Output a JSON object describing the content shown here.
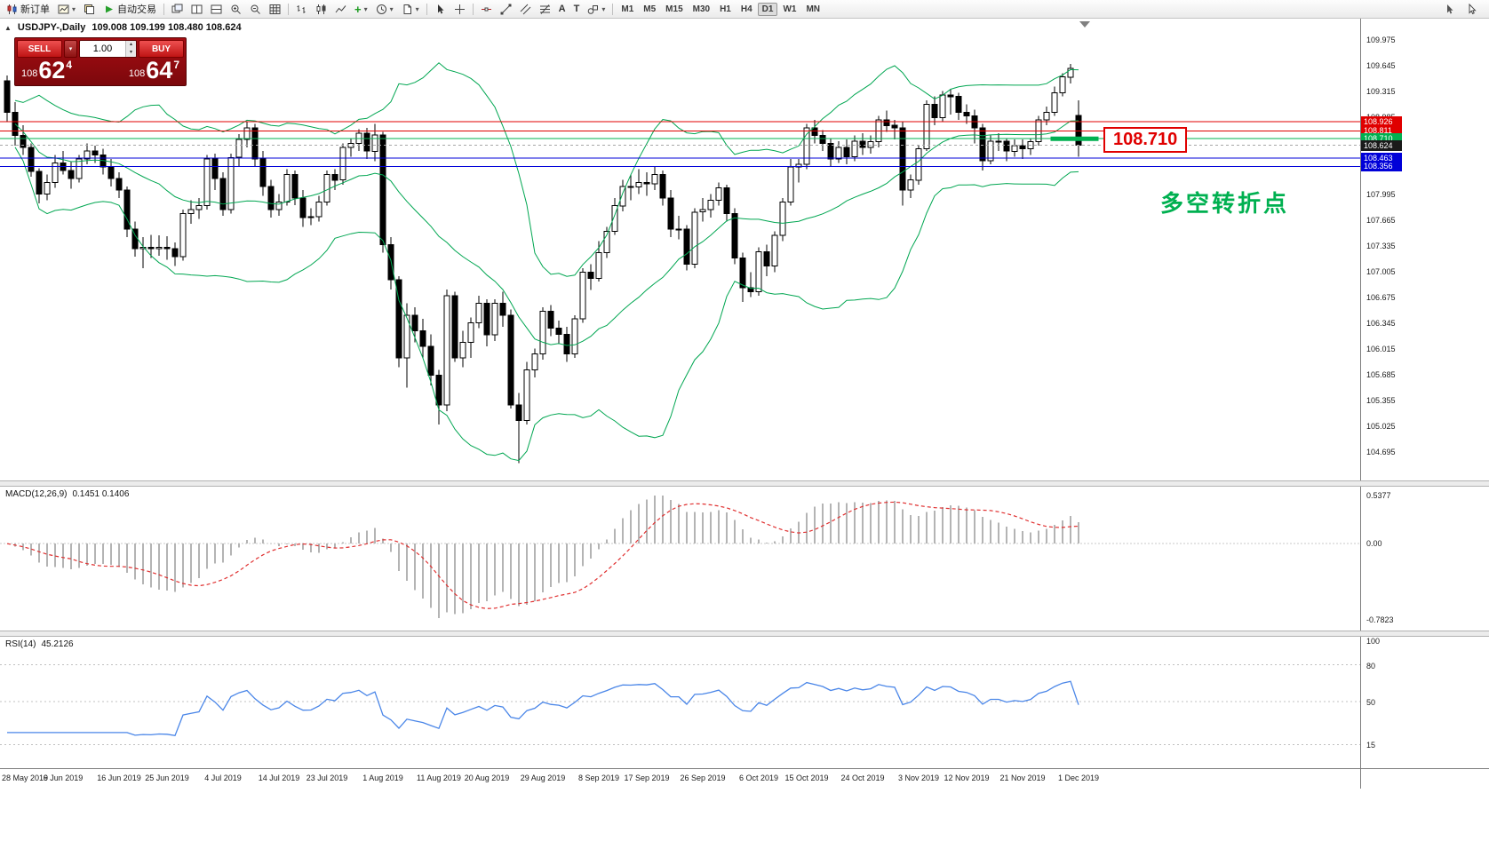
{
  "toolbar": {
    "new_order": "新订单",
    "autotrading": "自动交易",
    "timeframes": [
      "M1",
      "M5",
      "M15",
      "M30",
      "H1",
      "H4",
      "D1",
      "W1",
      "MN"
    ],
    "active_timeframe": "D1"
  },
  "one_click": {
    "sell_label": "SELL",
    "buy_label": "BUY",
    "volume": "1.00",
    "sell_price": {
      "pips": "108",
      "big": "62",
      "frac": "4"
    },
    "buy_price": {
      "pips": "108",
      "big": "64",
      "frac": "7"
    }
  },
  "chart": {
    "title": "USDJPY-,Daily",
    "ohlc_display": "109.008 109.199 108.480 108.624",
    "annotation": "多空转折点",
    "price_label": "108.710",
    "colors": {
      "price_label": "#e00000",
      "annotation": "#00b050"
    },
    "price_ticks": [
      "109.975",
      "109.645",
      "109.315",
      "108.985",
      "108.655",
      "108.325",
      "107.995",
      "107.665",
      "107.335",
      "107.005",
      "106.675",
      "106.345",
      "106.015",
      "105.685",
      "105.355",
      "105.025",
      "104.695"
    ],
    "levels": [
      {
        "price": 108.926,
        "tag": "108.926",
        "line_color": "#e00000",
        "tag_color": "#e00000",
        "dash": false
      },
      {
        "price": 108.811,
        "tag": "108.811",
        "line_color": "#e00000",
        "tag_color": "#e00000",
        "dash": false
      },
      {
        "price": 108.71,
        "tag": "108.710",
        "line_color": "#00b050",
        "tag_color": "#00b050",
        "dash": false
      },
      {
        "price": 108.624,
        "tag": "108.624",
        "line_color": "#a8a8a8",
        "tag_color": "#1a1a1a",
        "dash": true
      },
      {
        "price": 108.463,
        "tag": "108.463",
        "line_color": "#0000d8",
        "tag_color": "#0000d8",
        "dash": false
      },
      {
        "price": 108.356,
        "tag": "108.356",
        "line_color": "#0000d8",
        "tag_color": "#0000d8",
        "dash": false
      }
    ],
    "highlight_segment": {
      "price": 108.71,
      "from_index": 130.5,
      "to_index": 136.5,
      "color": "#00b050",
      "width": 5
    },
    "bollinger": {
      "period": 20,
      "deviation": 2,
      "color": "#00a651"
    },
    "candles": [
      [
        109.45,
        109.52,
        108.92,
        109.05
      ],
      [
        109.05,
        109.18,
        108.62,
        108.75
      ],
      [
        108.75,
        108.88,
        108.5,
        108.6
      ],
      [
        108.6,
        108.65,
        108.22,
        108.29
      ],
      [
        108.29,
        108.33,
        107.88,
        108.0
      ],
      [
        108.0,
        108.25,
        107.92,
        108.15
      ],
      [
        108.15,
        108.5,
        108.08,
        108.4
      ],
      [
        108.4,
        108.55,
        108.25,
        108.3
      ],
      [
        108.3,
        108.42,
        108.07,
        108.2
      ],
      [
        108.2,
        108.5,
        108.15,
        108.45
      ],
      [
        108.45,
        108.65,
        108.38,
        108.55
      ],
      [
        108.55,
        108.62,
        108.4,
        108.5
      ],
      [
        108.5,
        108.58,
        108.25,
        108.35
      ],
      [
        108.35,
        108.45,
        108.1,
        108.2
      ],
      [
        108.2,
        108.28,
        107.95,
        108.05
      ],
      [
        108.05,
        108.1,
        107.45,
        107.55
      ],
      [
        107.55,
        107.65,
        107.2,
        107.3
      ],
      [
        107.3,
        107.45,
        107.05,
        107.32
      ],
      [
        107.32,
        107.48,
        107.18,
        107.3
      ],
      [
        107.3,
        107.47,
        107.21,
        107.32
      ],
      [
        107.32,
        107.46,
        107.16,
        107.3
      ],
      [
        107.3,
        107.38,
        107.08,
        107.2
      ],
      [
        107.2,
        107.8,
        107.15,
        107.75
      ],
      [
        107.75,
        107.92,
        107.62,
        107.8
      ],
      [
        107.8,
        107.95,
        107.68,
        107.85
      ],
      [
        107.85,
        108.5,
        107.8,
        108.45
      ],
      [
        108.45,
        108.52,
        108.05,
        108.2
      ],
      [
        108.2,
        108.28,
        107.72,
        107.8
      ],
      [
        107.8,
        108.52,
        107.75,
        108.47
      ],
      [
        108.47,
        108.77,
        108.35,
        108.7
      ],
      [
        108.7,
        108.92,
        108.6,
        108.85
      ],
      [
        108.85,
        108.9,
        108.35,
        108.45
      ],
      [
        108.45,
        108.55,
        107.98,
        108.1
      ],
      [
        108.1,
        108.18,
        107.7,
        107.8
      ],
      [
        107.8,
        108.0,
        107.72,
        107.9
      ],
      [
        107.9,
        108.32,
        107.85,
        108.25
      ],
      [
        108.25,
        108.3,
        107.86,
        107.95
      ],
      [
        107.95,
        108.05,
        107.58,
        107.7
      ],
      [
        107.7,
        107.82,
        107.6,
        107.71
      ],
      [
        107.71,
        107.98,
        107.65,
        107.9
      ],
      [
        107.9,
        108.3,
        107.85,
        108.25
      ],
      [
        108.25,
        108.32,
        108.05,
        108.18
      ],
      [
        108.18,
        108.65,
        108.12,
        108.6
      ],
      [
        108.6,
        108.72,
        108.48,
        108.65
      ],
      [
        108.65,
        108.83,
        108.55,
        108.78
      ],
      [
        108.78,
        108.85,
        108.45,
        108.55
      ],
      [
        108.55,
        108.9,
        108.42,
        108.76
      ],
      [
        108.76,
        108.8,
        107.25,
        107.35
      ],
      [
        107.35,
        107.45,
        106.78,
        106.9
      ],
      [
        106.9,
        106.95,
        105.78,
        105.9
      ],
      [
        105.9,
        106.6,
        105.52,
        106.45
      ],
      [
        106.45,
        106.55,
        106.1,
        106.25
      ],
      [
        106.25,
        106.4,
        105.9,
        106.05
      ],
      [
        106.05,
        106.2,
        105.55,
        105.68
      ],
      [
        105.68,
        105.75,
        105.05,
        105.3
      ],
      [
        105.3,
        106.78,
        105.22,
        106.7
      ],
      [
        106.7,
        106.75,
        105.85,
        105.9
      ],
      [
        105.9,
        106.25,
        105.78,
        106.1
      ],
      [
        106.1,
        106.42,
        105.9,
        106.35
      ],
      [
        106.35,
        106.7,
        106.28,
        106.6
      ],
      [
        106.6,
        106.65,
        106.05,
        106.2
      ],
      [
        106.2,
        106.65,
        106.12,
        106.6
      ],
      [
        106.6,
        106.75,
        106.3,
        106.45
      ],
      [
        106.45,
        106.52,
        105.25,
        105.3
      ],
      [
        105.3,
        105.45,
        104.55,
        105.1
      ],
      [
        105.1,
        105.85,
        105.05,
        105.75
      ],
      [
        105.75,
        106.02,
        105.65,
        105.95
      ],
      [
        105.95,
        106.55,
        105.88,
        106.5
      ],
      [
        106.5,
        106.58,
        106.18,
        106.28
      ],
      [
        106.28,
        106.38,
        106.08,
        106.2
      ],
      [
        106.2,
        106.3,
        105.85,
        105.95
      ],
      [
        105.95,
        106.45,
        105.9,
        106.4
      ],
      [
        106.4,
        107.05,
        106.35,
        107.0
      ],
      [
        107.0,
        107.1,
        106.77,
        106.92
      ],
      [
        106.92,
        107.4,
        106.88,
        107.25
      ],
      [
        107.25,
        107.58,
        107.18,
        107.52
      ],
      [
        107.52,
        107.95,
        107.48,
        107.85
      ],
      [
        107.85,
        108.18,
        107.78,
        108.1
      ],
      [
        108.1,
        108.25,
        107.92,
        108.09
      ],
      [
        108.09,
        108.32,
        108.0,
        108.15
      ],
      [
        108.15,
        108.28,
        107.98,
        108.13
      ],
      [
        108.13,
        108.35,
        108.05,
        108.25
      ],
      [
        108.25,
        108.3,
        107.85,
        107.95
      ],
      [
        107.95,
        108.05,
        107.45,
        107.55
      ],
      [
        107.55,
        107.72,
        107.42,
        107.55
      ],
      [
        107.55,
        107.6,
        107.02,
        107.1
      ],
      [
        107.1,
        107.82,
        107.05,
        107.77
      ],
      [
        107.77,
        107.95,
        107.65,
        107.8
      ],
      [
        107.8,
        108.0,
        107.7,
        107.92
      ],
      [
        107.92,
        108.15,
        107.85,
        108.08
      ],
      [
        108.08,
        108.12,
        107.65,
        107.75
      ],
      [
        107.75,
        107.82,
        107.1,
        107.18
      ],
      [
        107.18,
        107.25,
        106.62,
        106.8
      ],
      [
        106.8,
        107.0,
        106.68,
        106.75
      ],
      [
        106.75,
        107.32,
        106.7,
        107.26
      ],
      [
        107.26,
        107.35,
        106.95,
        107.08
      ],
      [
        107.08,
        107.52,
        107.0,
        107.47
      ],
      [
        107.47,
        107.95,
        107.4,
        107.9
      ],
      [
        107.9,
        108.45,
        107.85,
        108.35
      ],
      [
        108.35,
        108.45,
        108.15,
        108.38
      ],
      [
        108.38,
        108.9,
        108.32,
        108.85
      ],
      [
        108.85,
        108.95,
        108.65,
        108.75
      ],
      [
        108.75,
        108.82,
        108.55,
        108.65
      ],
      [
        108.65,
        108.72,
        108.35,
        108.45
      ],
      [
        108.45,
        108.68,
        108.4,
        108.6
      ],
      [
        108.6,
        108.7,
        108.38,
        108.48
      ],
      [
        108.48,
        108.75,
        108.42,
        108.68
      ],
      [
        108.68,
        108.78,
        108.5,
        108.6
      ],
      [
        108.6,
        108.75,
        108.52,
        108.67
      ],
      [
        108.67,
        109.0,
        108.6,
        108.95
      ],
      [
        108.95,
        109.07,
        108.8,
        108.88
      ],
      [
        108.88,
        108.95,
        108.7,
        108.85
      ],
      [
        108.85,
        108.92,
        107.85,
        108.05
      ],
      [
        108.05,
        108.25,
        107.95,
        108.18
      ],
      [
        108.18,
        108.62,
        108.12,
        108.58
      ],
      [
        108.58,
        109.2,
        108.55,
        109.15
      ],
      [
        109.15,
        109.25,
        108.88,
        108.98
      ],
      [
        108.98,
        109.32,
        108.92,
        109.27
      ],
      [
        109.27,
        109.35,
        109.02,
        109.25
      ],
      [
        109.25,
        109.3,
        108.95,
        109.05
      ],
      [
        109.05,
        109.15,
        108.9,
        109.0
      ],
      [
        109.0,
        109.08,
        108.65,
        108.85
      ],
      [
        108.85,
        108.9,
        108.3,
        108.43
      ],
      [
        108.43,
        108.75,
        108.38,
        108.68
      ],
      [
        108.68,
        108.78,
        108.55,
        108.68
      ],
      [
        108.68,
        108.72,
        108.42,
        108.55
      ],
      [
        108.55,
        108.7,
        108.48,
        108.62
      ],
      [
        108.62,
        108.7,
        108.45,
        108.58
      ],
      [
        108.58,
        108.72,
        108.5,
        108.67
      ],
      [
        108.67,
        109.0,
        108.62,
        108.95
      ],
      [
        108.95,
        109.12,
        108.88,
        109.05
      ],
      [
        109.05,
        109.38,
        109.0,
        109.3
      ],
      [
        109.3,
        109.55,
        109.25,
        109.5
      ],
      [
        109.5,
        109.67,
        109.42,
        109.61
      ],
      [
        109.008,
        109.199,
        108.48,
        108.624
      ]
    ],
    "time_labels": [
      {
        "text": "28 May 2019",
        "index": 0
      },
      {
        "text": "6 Jun 2019",
        "index": 7
      },
      {
        "text": "16 Jun 2019",
        "index": 14
      },
      {
        "text": "25 Jun 2019",
        "index": 20
      },
      {
        "text": "4 Jul 2019",
        "index": 27
      },
      {
        "text": "14 Jul 2019",
        "index": 34
      },
      {
        "text": "23 Jul 2019",
        "index": 40
      },
      {
        "text": "1 Aug 2019",
        "index": 47
      },
      {
        "text": "11 Aug 2019",
        "index": 54
      },
      {
        "text": "20 Aug 2019",
        "index": 60
      },
      {
        "text": "29 Aug 2019",
        "index": 67
      },
      {
        "text": "8 Sep 2019",
        "index": 74
      },
      {
        "text": "17 Sep 2019",
        "index": 80
      },
      {
        "text": "26 Sep 2019",
        "index": 87
      },
      {
        "text": "6 Oct 2019",
        "index": 94
      },
      {
        "text": "15 Oct 2019",
        "index": 100
      },
      {
        "text": "24 Oct 2019",
        "index": 107
      },
      {
        "text": "3 Nov 2019",
        "index": 114
      },
      {
        "text": "12 Nov 2019",
        "index": 120
      },
      {
        "text": "21 Nov 2019",
        "index": 127
      },
      {
        "text": "1 Dec 2019",
        "index": 134
      }
    ]
  },
  "macd": {
    "label": "MACD(12,26,9)",
    "values_text": "0.1451 0.1406",
    "fast": 12,
    "slow": 26,
    "signal": 9,
    "bar_color": "#b4b4b4",
    "signal_color": "#e03030",
    "axis_max": "0.5377",
    "axis_zero": "0.00",
    "axis_min": "-0.7823"
  },
  "rsi": {
    "label": "RSI(14)",
    "value_text": "45.2126",
    "period": 14,
    "color": "#4a86e8",
    "scale_top_label": "100",
    "levels": [
      {
        "value": 80,
        "label": "80"
      },
      {
        "value": 50,
        "label": "50"
      },
      {
        "value": 15,
        "label": "15"
      }
    ]
  }
}
